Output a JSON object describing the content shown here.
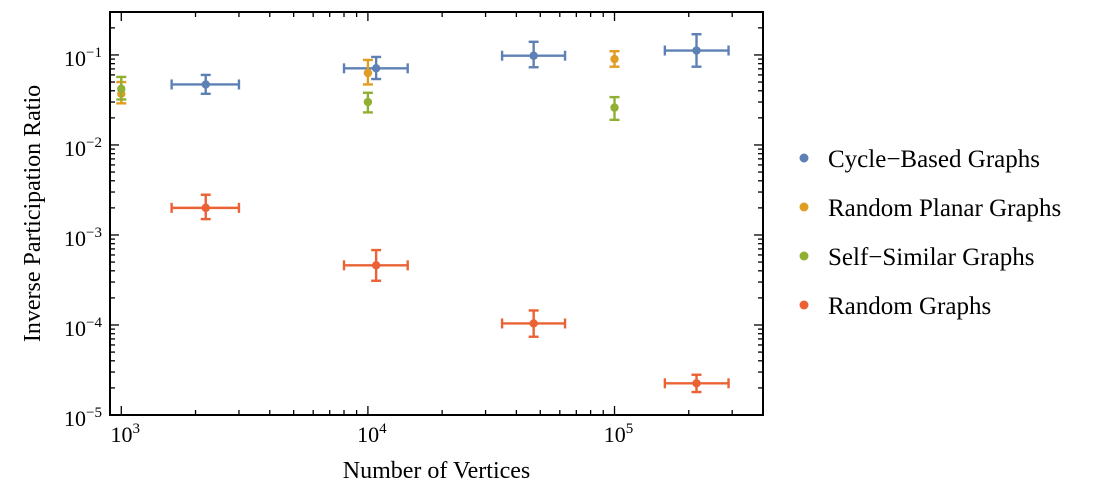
{
  "chart_data": {
    "type": "scatter",
    "title": "",
    "xlabel": "Number of Vertices",
    "ylabel": "Inverse Participation Ratio",
    "xscale": "log",
    "yscale": "log",
    "xlim": [
      900,
      400000
    ],
    "ylim": [
      1e-05,
      0.3
    ],
    "x_ticks": [
      {
        "value": 1000,
        "base": "10",
        "exp": "3"
      },
      {
        "value": 10000,
        "base": "10",
        "exp": "4"
      },
      {
        "value": 100000,
        "base": "10",
        "exp": "5"
      }
    ],
    "y_ticks": [
      {
        "value": 1e-05,
        "base": "10",
        "exp": "−5"
      },
      {
        "value": 0.0001,
        "base": "10",
        "exp": "−4"
      },
      {
        "value": 0.001,
        "base": "10",
        "exp": "−3"
      },
      {
        "value": 0.01,
        "base": "10",
        "exp": "−2"
      },
      {
        "value": 0.1,
        "base": "10",
        "exp": "−1"
      }
    ],
    "legend_position": "right",
    "grid": false,
    "series": [
      {
        "name": "Cycle−Based Graphs",
        "color": "#5e81b5",
        "points": [
          {
            "x": 2200,
            "y": 0.047,
            "xerr": [
              1600,
              3000
            ],
            "yerr": [
              0.037,
              0.06
            ]
          },
          {
            "x": 10800,
            "y": 0.071,
            "xerr": [
              8000,
              14500
            ],
            "yerr": [
              0.054,
              0.095
            ]
          },
          {
            "x": 47000,
            "y": 0.098,
            "xerr": [
              35000,
              63000
            ],
            "yerr": [
              0.073,
              0.14
            ]
          },
          {
            "x": 215000,
            "y": 0.112,
            "xerr": [
              160000,
              290000
            ],
            "yerr": [
              0.074,
              0.17
            ]
          }
        ]
      },
      {
        "name": "Random Planar Graphs",
        "color": "#e19c24",
        "points": [
          {
            "x": 1000,
            "y": 0.037,
            "yerr": [
              0.029,
              0.05
            ]
          },
          {
            "x": 10000,
            "y": 0.063,
            "yerr": [
              0.047,
              0.088
            ]
          },
          {
            "x": 100000,
            "y": 0.09,
            "yerr": [
              0.074,
              0.11
            ]
          }
        ]
      },
      {
        "name": "Self−Similar Graphs",
        "color": "#8fb032",
        "points": [
          {
            "x": 1000,
            "y": 0.042,
            "yerr": [
              0.032,
              0.057
            ]
          },
          {
            "x": 10000,
            "y": 0.03,
            "yerr": [
              0.023,
              0.038
            ]
          },
          {
            "x": 100000,
            "y": 0.026,
            "yerr": [
              0.019,
              0.034
            ]
          }
        ]
      },
      {
        "name": "Random Graphs",
        "color": "#eb6235",
        "points": [
          {
            "x": 2200,
            "y": 0.002,
            "xerr": [
              1600,
              3000
            ],
            "yerr": [
              0.0015,
              0.0028
            ]
          },
          {
            "x": 10800,
            "y": 0.00046,
            "xerr": [
              8000,
              14500
            ],
            "yerr": [
              0.00031,
              0.00068
            ]
          },
          {
            "x": 47000,
            "y": 0.000104,
            "xerr": [
              35000,
              63000
            ],
            "yerr": [
              7.4e-05,
              0.000145
            ]
          },
          {
            "x": 215000,
            "y": 2.25e-05,
            "xerr": [
              160000,
              290000
            ],
            "yerr": [
              1.8e-05,
              2.8e-05
            ]
          }
        ]
      }
    ]
  }
}
